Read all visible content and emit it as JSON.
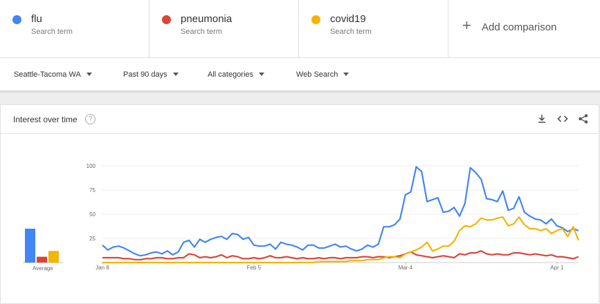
{
  "terms": [
    {
      "name": "flu",
      "sub": "Search term",
      "color": "#4285f4"
    },
    {
      "name": "pneumonia",
      "sub": "Search term",
      "color": "#db4437"
    },
    {
      "name": "covid19",
      "sub": "Search term",
      "color": "#f4b400"
    }
  ],
  "add_comparison": "Add comparison",
  "filters": {
    "region": "Seattle-Tacoma WA",
    "period": "Past 90 days",
    "category": "All categories",
    "search_type": "Web Search"
  },
  "card": {
    "title": "Interest over time",
    "help": "?",
    "icons": [
      "download-icon",
      "embed-icon",
      "share-icon"
    ]
  },
  "average_label": "Average",
  "chart_data": {
    "type": "line",
    "x": [
      "Jan 8",
      "Jan 9",
      "Jan 10",
      "Jan 11",
      "Jan 12",
      "Jan 13",
      "Jan 14",
      "Jan 15",
      "Jan 16",
      "Jan 17",
      "Jan 18",
      "Jan 19",
      "Jan 20",
      "Jan 21",
      "Jan 22",
      "Jan 23",
      "Jan 24",
      "Jan 25",
      "Jan 26",
      "Jan 27",
      "Jan 28",
      "Jan 29",
      "Jan 30",
      "Jan 31",
      "Feb 1",
      "Feb 2",
      "Feb 3",
      "Feb 4",
      "Feb 5",
      "Feb 6",
      "Feb 7",
      "Feb 8",
      "Feb 9",
      "Feb 10",
      "Feb 11",
      "Feb 12",
      "Feb 13",
      "Feb 14",
      "Feb 15",
      "Feb 16",
      "Feb 17",
      "Feb 18",
      "Feb 19",
      "Feb 20",
      "Feb 21",
      "Feb 22",
      "Feb 23",
      "Feb 24",
      "Feb 25",
      "Feb 26",
      "Feb 27",
      "Feb 28",
      "Feb 29",
      "Mar 1",
      "Mar 2",
      "Mar 3",
      "Mar 4",
      "Mar 5",
      "Mar 6",
      "Mar 7",
      "Mar 8",
      "Mar 9",
      "Mar 10",
      "Mar 11",
      "Mar 12",
      "Mar 13",
      "Mar 14",
      "Mar 15",
      "Mar 16",
      "Mar 17",
      "Mar 18",
      "Mar 19",
      "Mar 20",
      "Mar 21",
      "Mar 22",
      "Mar 23",
      "Mar 24",
      "Mar 25",
      "Mar 26",
      "Mar 27",
      "Mar 28",
      "Mar 29",
      "Mar 30",
      "Mar 31",
      "Apr 1",
      "Apr 2",
      "Apr 3",
      "Apr 4",
      "Apr 5"
    ],
    "tick_labels": [
      {
        "label": "Jan 8",
        "index": 0
      },
      {
        "label": "Feb 5",
        "index": 28
      },
      {
        "label": "Mar 4",
        "index": 56
      },
      {
        "label": "Apr 1",
        "index": 84
      }
    ],
    "y_ticks": [
      100,
      75,
      50,
      25
    ],
    "ylim": [
      0,
      100
    ],
    "grid": true,
    "series": [
      {
        "color": "#4285f4",
        "average": 35,
        "values": [
          18,
          13,
          16,
          17,
          15,
          12,
          9,
          7,
          8,
          10,
          11,
          9,
          12,
          8,
          11,
          21,
          23,
          16,
          24,
          21,
          24,
          26,
          27,
          24,
          30,
          29,
          24,
          26,
          18,
          17,
          17,
          19,
          14,
          21,
          19,
          18,
          16,
          13,
          18,
          18,
          15,
          15,
          17,
          19,
          16,
          17,
          14,
          12,
          14,
          18,
          16,
          19,
          37,
          37,
          39,
          45,
          70,
          73,
          99,
          94,
          63,
          65,
          67,
          52,
          53,
          57,
          48,
          61,
          98,
          93,
          86,
          66,
          65,
          63,
          74,
          54,
          56,
          68,
          52,
          48,
          45,
          44,
          40,
          45,
          38,
          36,
          32,
          35,
          33
        ]
      },
      {
        "color": "#db4437",
        "average": 6,
        "values": [
          5,
          5,
          5,
          5,
          4,
          4,
          3,
          3,
          4,
          4,
          5,
          5,
          4,
          4,
          5,
          5,
          9,
          8,
          5,
          6,
          5,
          6,
          8,
          5,
          7,
          6,
          4,
          4,
          5,
          4,
          5,
          7,
          5,
          5,
          6,
          5,
          4,
          5,
          4,
          4,
          5,
          4,
          5,
          5,
          4,
          5,
          5,
          5,
          6,
          6,
          5,
          6,
          6,
          5,
          6,
          7,
          9,
          11,
          8,
          7,
          6,
          5,
          6,
          7,
          6,
          5,
          9,
          8,
          10,
          10,
          12,
          9,
          8,
          9,
          8,
          8,
          10,
          10,
          9,
          8,
          9,
          8,
          7,
          8,
          6,
          6,
          5,
          4,
          6
        ]
      },
      {
        "color": "#f4b400",
        "average": 12,
        "values": [
          0,
          0,
          0,
          0,
          0,
          0,
          0,
          0,
          0,
          0,
          0,
          0,
          0,
          0,
          0,
          0,
          0,
          0,
          0,
          0,
          0,
          0,
          0,
          0,
          0,
          0,
          0,
          0,
          0,
          0,
          0,
          0,
          0,
          0,
          0,
          0,
          0,
          0,
          0,
          0,
          1,
          1,
          1,
          1,
          1,
          1,
          2,
          2,
          2,
          3,
          3,
          3,
          5,
          6,
          6,
          5,
          9,
          11,
          13,
          16,
          21,
          12,
          14,
          17,
          17,
          22,
          33,
          38,
          37,
          40,
          46,
          44,
          44,
          46,
          47,
          38,
          40,
          47,
          39,
          35,
          35,
          33,
          35,
          30,
          33,
          35,
          27,
          37,
          23
        ]
      }
    ]
  }
}
